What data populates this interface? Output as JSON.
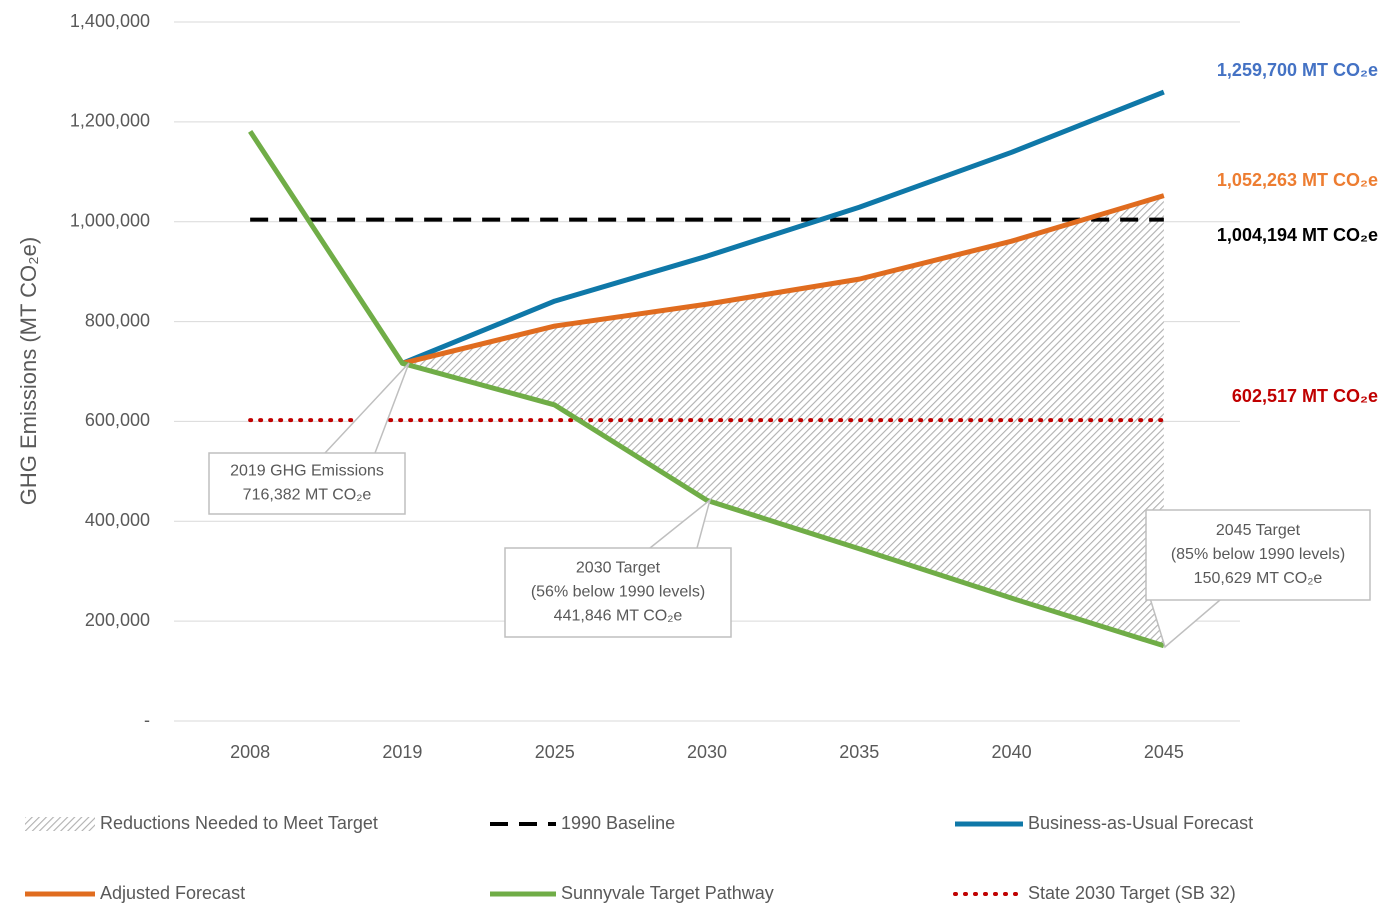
{
  "chart_data": {
    "type": "line",
    "y_label": "GHG Emissions (MT CO₂e)",
    "categories": [
      "2008",
      "2019",
      "2025",
      "2030",
      "2035",
      "2040",
      "2045"
    ],
    "ylim": [
      0,
      1400000
    ],
    "yticks": [
      {
        "value": 0,
        "label": "-"
      },
      {
        "value": 200000,
        "label": "200,000"
      },
      {
        "value": 400000,
        "label": "400,000"
      },
      {
        "value": 600000,
        "label": "600,000"
      },
      {
        "value": 800000,
        "label": "800,000"
      },
      {
        "value": 1000000,
        "label": "1,000,000"
      },
      {
        "value": 1200000,
        "label": "1,200,000"
      },
      {
        "value": 1400000,
        "label": "1,400,000"
      }
    ],
    "grid": true,
    "legend": "bottom",
    "series": [
      {
        "name": "Reductions Needed to Meet Target",
        "color": "#a6a6a6",
        "style": "hatch"
      },
      {
        "name": "1990 Baseline",
        "color": "#000000",
        "style": "dashed",
        "values": [
          1004194,
          1004194,
          1004194,
          1004194,
          1004194,
          1004194,
          1004194
        ]
      },
      {
        "name": "Business-as-Usual Forecast",
        "color": "#0f78a8",
        "style": "solid",
        "values": [
          null,
          716382,
          841000,
          931000,
          1029000,
          1139000,
          1259700
        ]
      },
      {
        "name": "Adjusted Forecast",
        "color": "#e06c1f",
        "style": "solid",
        "values": [
          null,
          716382,
          791000,
          835000,
          885000,
          961000,
          1052263
        ]
      },
      {
        "name": "Sunnyvale Target Pathway",
        "color": "#70ad47",
        "style": "solid",
        "values": [
          1181000,
          716382,
          633000,
          441846,
          345000,
          246000,
          150629
        ]
      },
      {
        "name": "State 2030 Target (SB 32)",
        "color": "#c00000",
        "style": "dotted",
        "values": [
          602517,
          602517,
          602517,
          602517,
          602517,
          602517,
          602517
        ]
      }
    ],
    "annotations": [
      {
        "text": "1,259,700 MT CO₂e",
        "color": "#4472c4"
      },
      {
        "text": "1,052,263 MT CO₂e",
        "color": "#ed7d31"
      },
      {
        "text": "1,004,194 MT CO₂e",
        "color": "#000000"
      },
      {
        "text": "602,517  MT CO₂e",
        "color": "#c00000"
      }
    ],
    "callouts": [
      {
        "lines": [
          "2019 GHG Emissions",
          "716,382  MT CO₂e"
        ]
      },
      {
        "lines": [
          "2030 Target",
          "(56% below 1990 levels)",
          "441,846 MT CO₂e"
        ]
      },
      {
        "lines": [
          "2045 Target",
          "(85% below 1990 levels)",
          "150,629  MT CO₂e"
        ]
      }
    ]
  }
}
